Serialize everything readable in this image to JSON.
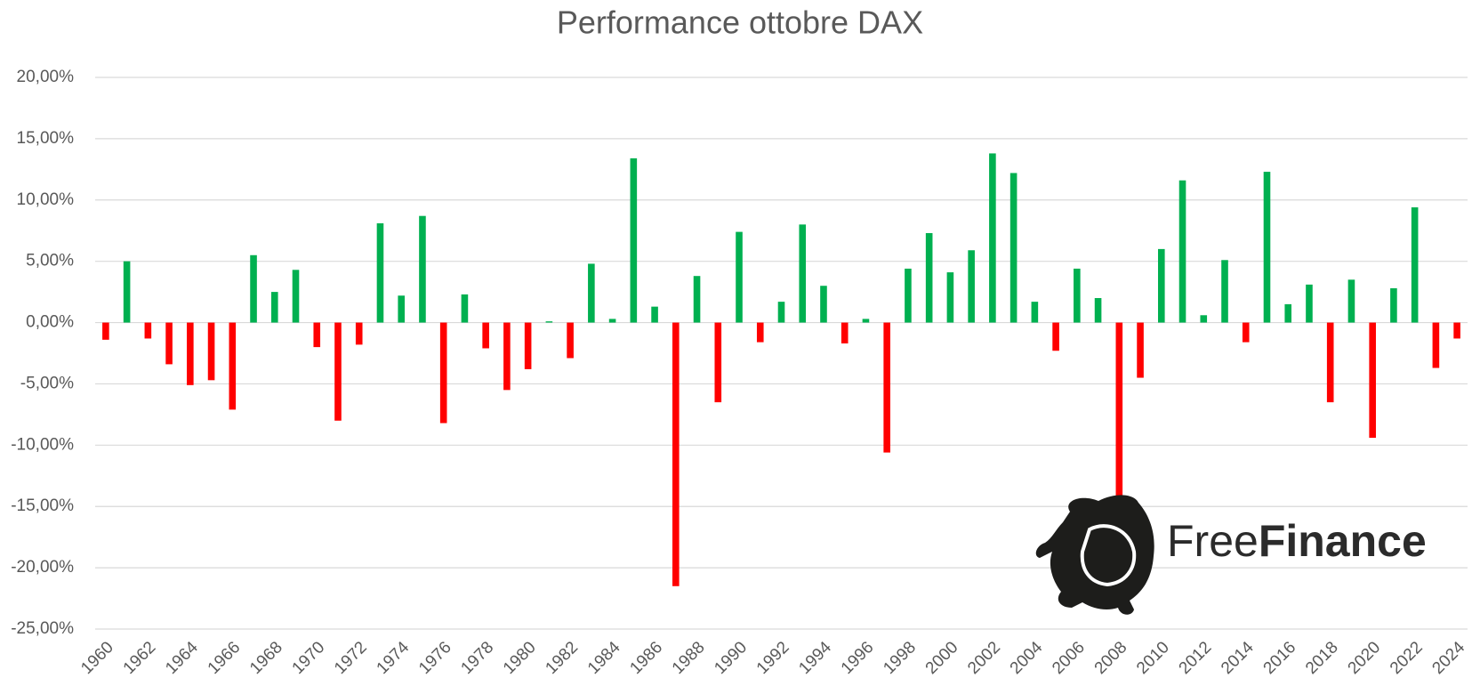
{
  "chart_data": {
    "type": "bar",
    "title": "Performance ottobre DAX",
    "categories": [
      "1960",
      null,
      "1962",
      null,
      "1964",
      null,
      "1966",
      null,
      "1968",
      null,
      "1970",
      null,
      "1972",
      null,
      "1974",
      null,
      "1976",
      null,
      "1978",
      null,
      "1980",
      null,
      "1982",
      null,
      "1984",
      null,
      "1986",
      null,
      "1988",
      null,
      "1990",
      null,
      "1992",
      null,
      "1994",
      null,
      "1996",
      null,
      "1998",
      null,
      "2000",
      null,
      "2002",
      null,
      "2004",
      null,
      "2006",
      null,
      "2008",
      null,
      "2010",
      null,
      "2012",
      null,
      "2014",
      null,
      "2016",
      null,
      "2018",
      null,
      "2020",
      null,
      "2022",
      null,
      "2024"
    ],
    "values": [
      -1.4,
      5.0,
      -1.3,
      -3.4,
      -5.1,
      -4.7,
      -7.1,
      5.5,
      2.5,
      4.3,
      -2.0,
      -8.0,
      -1.8,
      8.1,
      2.2,
      8.7,
      -8.2,
      2.3,
      -2.1,
      -5.5,
      -3.8,
      0.1,
      -2.9,
      4.8,
      0.3,
      13.4,
      1.3,
      -21.5,
      3.8,
      -6.5,
      7.4,
      -1.6,
      1.7,
      8.0,
      3.0,
      -1.7,
      0.3,
      -10.6,
      4.4,
      7.3,
      4.1,
      5.9,
      13.8,
      12.2,
      1.7,
      -2.3,
      4.4,
      2.0,
      -14.5,
      -4.5,
      6.0,
      11.6,
      0.6,
      5.1,
      -1.6,
      12.3,
      1.5,
      3.1,
      -6.5,
      3.5,
      -9.4,
      2.8,
      9.4,
      -3.7,
      -1.3
    ],
    "positive_color": "#00b050",
    "negative_color": "#ff0000",
    "ylim": [
      -25,
      20
    ],
    "yticks": [
      {
        "value": -25,
        "label": "-25,00%"
      },
      {
        "value": -20,
        "label": "-20,00%"
      },
      {
        "value": -15,
        "label": "-15,00%"
      },
      {
        "value": -10,
        "label": "-10,00%"
      },
      {
        "value": -5,
        "label": "-5,00%"
      },
      {
        "value": 0,
        "label": "0,00%"
      },
      {
        "value": 5,
        "label": "5,00%"
      },
      {
        "value": 10,
        "label": "10,00%"
      },
      {
        "value": 15,
        "label": "15,00%"
      },
      {
        "value": 20,
        "label": "20,00%"
      }
    ],
    "grid": true,
    "watermark": {
      "light": "Free",
      "bold": "Finance"
    }
  }
}
